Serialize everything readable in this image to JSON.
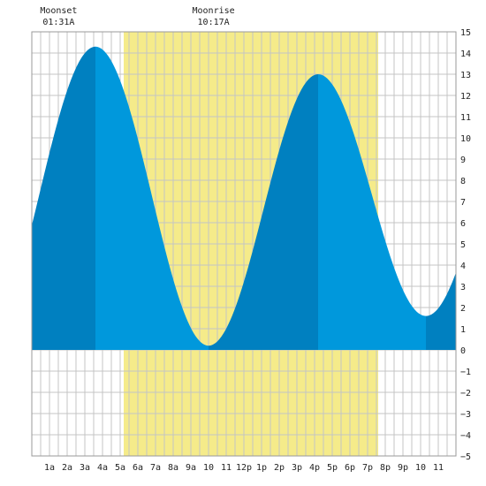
{
  "chart_data": {
    "type": "area",
    "title": "",
    "xlabel": "",
    "ylabel": "",
    "ylim": [
      -5,
      15
    ],
    "xlim_hours": [
      0,
      24
    ],
    "grid": true,
    "y_ticks": [
      -5,
      -4,
      -3,
      -2,
      -1,
      0,
      1,
      2,
      3,
      4,
      5,
      6,
      7,
      8,
      9,
      10,
      11,
      12,
      13,
      14,
      15
    ],
    "x_ticks": [
      {
        "hour": 1,
        "label": "1a"
      },
      {
        "hour": 2,
        "label": "2a"
      },
      {
        "hour": 3,
        "label": "3a"
      },
      {
        "hour": 4,
        "label": "4a"
      },
      {
        "hour": 5,
        "label": "5a"
      },
      {
        "hour": 6,
        "label": "6a"
      },
      {
        "hour": 7,
        "label": "7a"
      },
      {
        "hour": 8,
        "label": "8a"
      },
      {
        "hour": 9,
        "label": "9a"
      },
      {
        "hour": 10,
        "label": "10"
      },
      {
        "hour": 11,
        "label": "11"
      },
      {
        "hour": 12,
        "label": "12p"
      },
      {
        "hour": 13,
        "label": "1p"
      },
      {
        "hour": 14,
        "label": "2p"
      },
      {
        "hour": 15,
        "label": "3p"
      },
      {
        "hour": 16,
        "label": "4p"
      },
      {
        "hour": 17,
        "label": "5p"
      },
      {
        "hour": 18,
        "label": "6p"
      },
      {
        "hour": 19,
        "label": "7p"
      },
      {
        "hour": 20,
        "label": "8p"
      },
      {
        "hour": 21,
        "label": "9p"
      },
      {
        "hour": 22,
        "label": "10"
      },
      {
        "hour": 23,
        "label": "11"
      }
    ],
    "daylight_hours": [
      5.2,
      19.6
    ],
    "tide_extremes": [
      {
        "hour": 3.6,
        "height": 14.3,
        "kind": "high"
      },
      {
        "hour": 10.0,
        "height": 0.2,
        "kind": "low"
      },
      {
        "hour": 16.2,
        "height": 13.0,
        "kind": "high"
      },
      {
        "hour": 22.3,
        "height": 1.6,
        "kind": "low"
      }
    ],
    "tide_start": {
      "hour": 0,
      "height": 5.9
    },
    "tide_end": {
      "hour": 24,
      "height": 3.3
    },
    "annotations": [
      {
        "label": "Moonset",
        "time": "01:31A",
        "hour": 1.52
      },
      {
        "label": "Moonrise",
        "time": "10:17A",
        "hour": 10.28
      }
    ],
    "colors": {
      "rising": "#0080c0",
      "falling": "#0098dc",
      "daylight": "#f5eb8a",
      "grid": "#c4c4c4",
      "background": "#ffffff"
    }
  }
}
